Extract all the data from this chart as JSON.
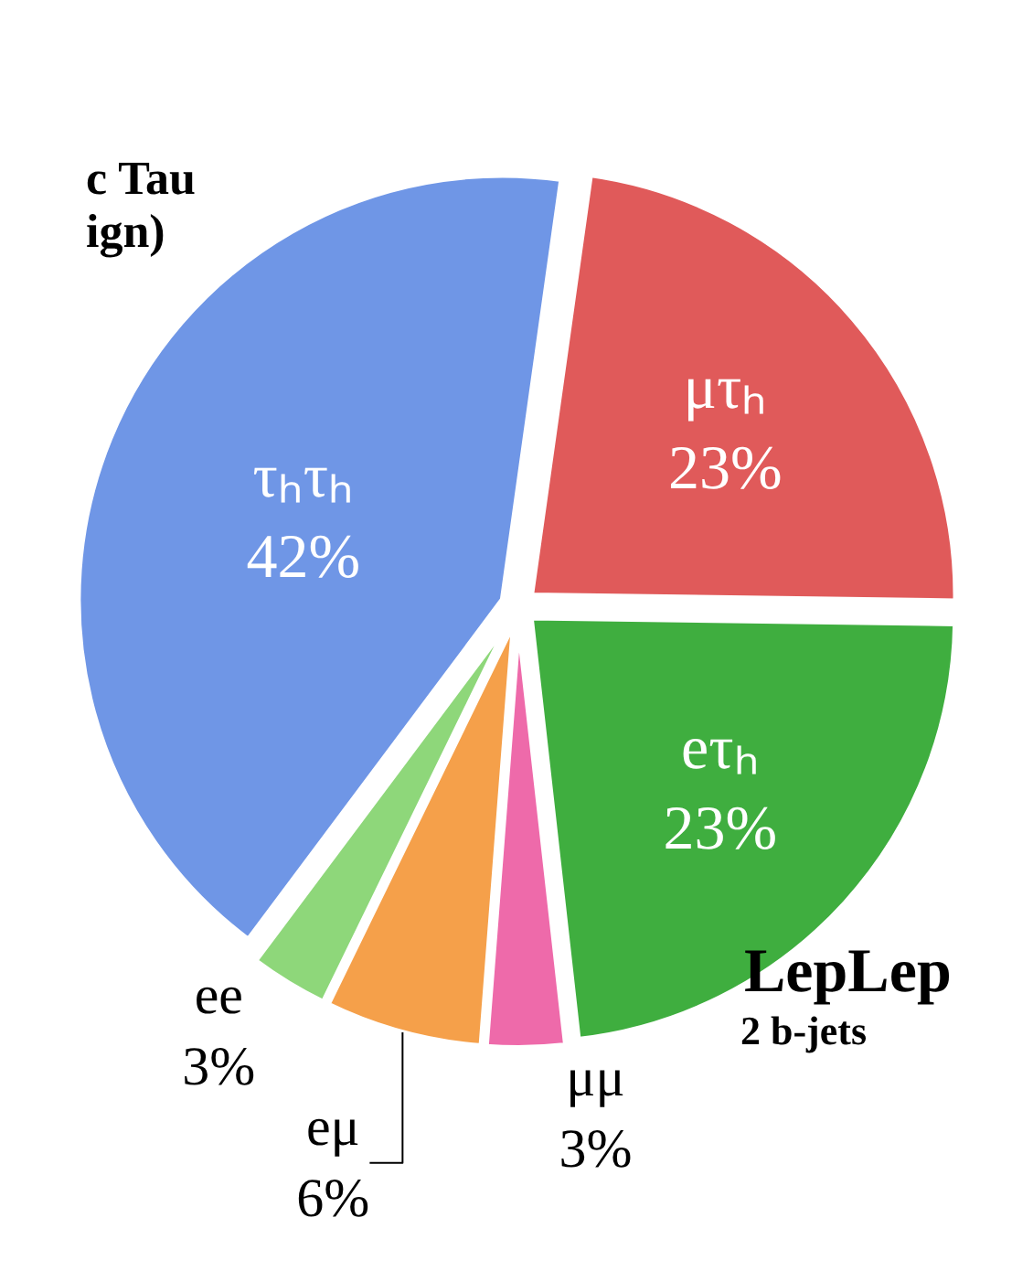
{
  "chart_data": {
    "type": "pie",
    "categories": [
      "μτₕ",
      "eτₕ",
      "μμ",
      "eμ",
      "ee",
      "τₕτₕ"
    ],
    "values": [
      23,
      23,
      3,
      6,
      3,
      42
    ],
    "value_labels": [
      "23%",
      "23%",
      "3%",
      "6%",
      "3%",
      "42%"
    ],
    "colors": [
      "#e05a5a",
      "#3fae3f",
      "#ee6aaa",
      "#f5a04a",
      "#8ed77a",
      "#6f96e6"
    ],
    "annotations": [
      "c Tau",
      "ign)",
      "LepLep",
      "2 b-jets"
    ],
    "legend": false
  }
}
